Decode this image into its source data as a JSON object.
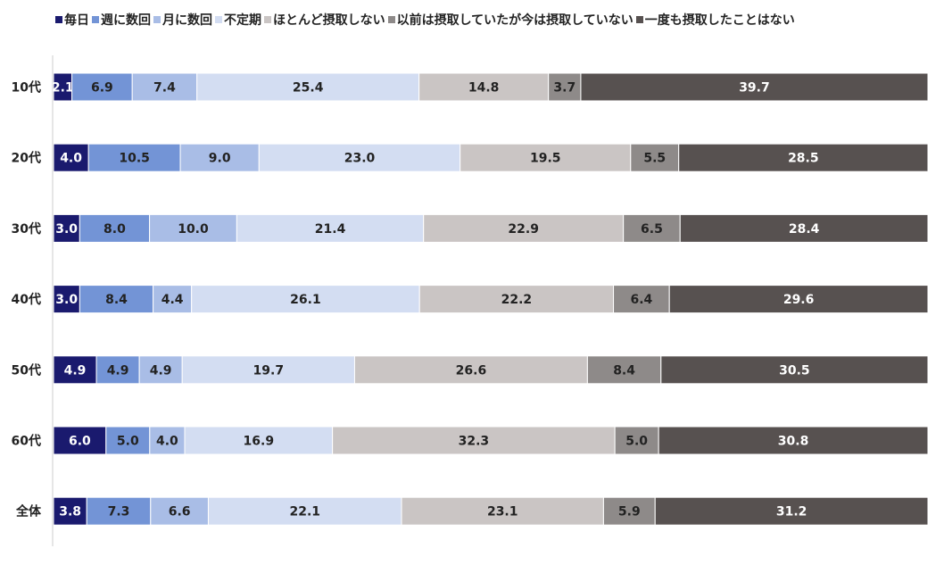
{
  "chart_data": {
    "type": "bar",
    "orientation": "horizontal",
    "stacked": "100%",
    "categories": [
      "10代",
      "20代",
      "30代",
      "40代",
      "50代",
      "60代",
      "全体"
    ],
    "series": [
      {
        "name": "毎日",
        "color": "#1a1a6e",
        "label_color": "#ffffff",
        "values": [
          2.1,
          4.0,
          3.0,
          3.0,
          4.9,
          6.0,
          3.8
        ]
      },
      {
        "name": "週に数回",
        "color": "#7394d6",
        "label_color": "#222222",
        "values": [
          6.9,
          10.5,
          8.0,
          8.4,
          4.9,
          5.0,
          7.3
        ]
      },
      {
        "name": "月に数回",
        "color": "#a9bde6",
        "label_color": "#222222",
        "values": [
          7.4,
          9.0,
          10.0,
          4.4,
          4.9,
          4.0,
          6.6
        ]
      },
      {
        "name": "不定期",
        "color": "#d3ddf2",
        "label_color": "#222222",
        "values": [
          25.4,
          23.0,
          21.4,
          26.1,
          19.7,
          16.9,
          22.1
        ]
      },
      {
        "name": "ほとんど摂取しない",
        "color": "#cac5c4",
        "label_color": "#222222",
        "values": [
          14.8,
          19.5,
          22.9,
          22.2,
          26.6,
          32.3,
          23.1
        ]
      },
      {
        "name": "以前は摂取していたが今は摂取していない",
        "color": "#8e8a89",
        "label_color": "#222222",
        "values": [
          3.7,
          5.5,
          6.5,
          6.4,
          8.4,
          5.0,
          5.9
        ]
      },
      {
        "name": "一度も摂取したことはない",
        "color": "#575150",
        "label_color": "#ffffff",
        "values": [
          39.7,
          28.5,
          28.4,
          29.6,
          30.5,
          30.8,
          31.2
        ]
      }
    ],
    "legend_position": "top",
    "grid": false
  }
}
